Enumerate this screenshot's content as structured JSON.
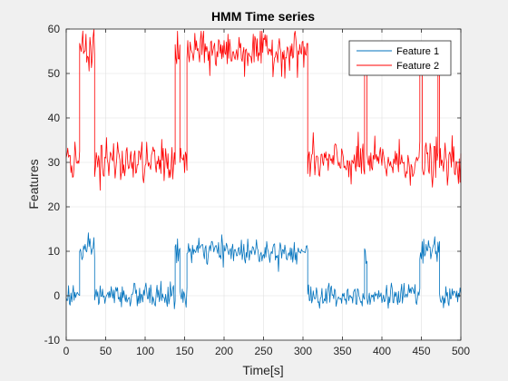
{
  "chart_data": {
    "type": "line",
    "title": "HMM Time series",
    "xlabel": "Time[s]",
    "ylabel": "Features",
    "xlim": [
      0,
      500
    ],
    "ylim": [
      -10,
      60
    ],
    "xticks": [
      0,
      50,
      100,
      150,
      200,
      250,
      300,
      350,
      400,
      450,
      500
    ],
    "yticks": [
      -10,
      0,
      10,
      20,
      30,
      40,
      50,
      60
    ],
    "grid": true,
    "legend_position": "top-right",
    "series": [
      {
        "name": "Feature 1",
        "color": "#0072BD",
        "noise": 1.4,
        "segments": [
          {
            "start": 0,
            "end": 17,
            "value": 0
          },
          {
            "start": 17,
            "end": 36,
            "value": 10
          },
          {
            "start": 36,
            "end": 138,
            "value": 0
          },
          {
            "start": 138,
            "end": 144,
            "value": 10
          },
          {
            "start": 144,
            "end": 153,
            "value": 0
          },
          {
            "start": 153,
            "end": 306,
            "value": 10
          },
          {
            "start": 306,
            "end": 378,
            "value": 0
          },
          {
            "start": 378,
            "end": 381,
            "value": 10
          },
          {
            "start": 381,
            "end": 448,
            "value": 0
          },
          {
            "start": 448,
            "end": 473,
            "value": 10
          },
          {
            "start": 473,
            "end": 500,
            "value": 0
          }
        ]
      },
      {
        "name": "Feature 2",
        "color": "#FF0000",
        "noise": 2.3,
        "segments": [
          {
            "start": 0,
            "end": 17,
            "value": 30
          },
          {
            "start": 17,
            "end": 36,
            "value": 56
          },
          {
            "start": 36,
            "end": 138,
            "value": 30
          },
          {
            "start": 138,
            "end": 144,
            "value": 55
          },
          {
            "start": 144,
            "end": 153,
            "value": 30
          },
          {
            "start": 153,
            "end": 306,
            "value": 55
          },
          {
            "start": 306,
            "end": 378,
            "value": 30
          },
          {
            "start": 378,
            "end": 381,
            "value": 54
          },
          {
            "start": 381,
            "end": 448,
            "value": 30
          },
          {
            "start": 448,
            "end": 451,
            "value": 55
          },
          {
            "start": 451,
            "end": 471,
            "value": 30
          },
          {
            "start": 471,
            "end": 473,
            "value": 55
          },
          {
            "start": 473,
            "end": 500,
            "value": 30
          }
        ]
      }
    ]
  }
}
